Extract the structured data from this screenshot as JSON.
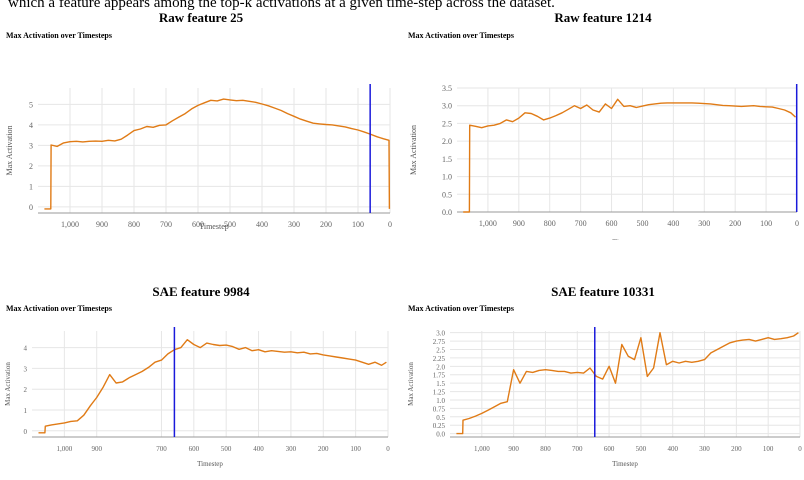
{
  "caption_line": "which a feature appears among the top-k activations at a given time-step across the dataset.",
  "colors": {
    "line": "#e07b16",
    "marker": "#1a1adb",
    "grid": "#e6e6e6",
    "axis": "#999999"
  },
  "chart_data": [
    {
      "type": "line",
      "title": "Raw feature 25",
      "subtitle": "Max Activation over Timesteps",
      "xlabel": "Timestep",
      "ylabel": "Max Activation",
      "x_reversed": true,
      "xlim": [
        1100,
        0
      ],
      "ylim": [
        -0.3,
        5.8
      ],
      "xticks": [
        1000,
        900,
        800,
        700,
        600,
        500,
        400,
        300,
        200,
        100,
        0
      ],
      "xtick_labels": [
        "1,000",
        "900",
        "800",
        "700",
        "600",
        "500",
        "400",
        "300",
        "200",
        "100",
        "0"
      ],
      "yticks": [
        0,
        1,
        2,
        3,
        4,
        5
      ],
      "ytick_labels": [
        "0",
        "1",
        "2",
        "3",
        "4",
        "5"
      ],
      "marker_x": 62,
      "x": [
        1080,
        1060,
        1059,
        1040,
        1020,
        1000,
        980,
        960,
        940,
        920,
        900,
        880,
        860,
        840,
        820,
        800,
        780,
        760,
        740,
        720,
        700,
        680,
        660,
        640,
        620,
        600,
        580,
        560,
        540,
        520,
        500,
        480,
        460,
        440,
        420,
        400,
        380,
        360,
        340,
        320,
        300,
        280,
        260,
        240,
        220,
        200,
        180,
        160,
        140,
        120,
        100,
        80,
        62,
        40,
        20,
        3,
        2
      ],
      "y": [
        -0.1,
        -0.1,
        3.02,
        2.95,
        3.12,
        3.18,
        3.2,
        3.17,
        3.2,
        3.21,
        3.2,
        3.25,
        3.22,
        3.3,
        3.5,
        3.72,
        3.8,
        3.92,
        3.88,
        3.98,
        4.0,
        4.2,
        4.38,
        4.55,
        4.78,
        4.95,
        5.08,
        5.2,
        5.17,
        5.26,
        5.22,
        5.18,
        5.2,
        5.15,
        5.1,
        5.02,
        4.93,
        4.82,
        4.7,
        4.55,
        4.42,
        4.28,
        4.18,
        4.08,
        4.05,
        4.02,
        4.0,
        3.95,
        3.9,
        3.82,
        3.75,
        3.65,
        3.55,
        3.42,
        3.32,
        3.25,
        -0.1
      ]
    },
    {
      "type": "line",
      "title": "Raw feature 1214",
      "subtitle": "Max Activation over Timesteps",
      "xlabel": "Timestep",
      "ylabel": "Max Activation",
      "x_reversed": true,
      "xlim": [
        1100,
        0
      ],
      "ylim": [
        0,
        3.5
      ],
      "xticks": [
        1000,
        900,
        800,
        700,
        600,
        500,
        400,
        300,
        200,
        100,
        0
      ],
      "xtick_labels": [
        "1,000",
        "900",
        "800",
        "700",
        "600",
        "500",
        "400",
        "300",
        "200",
        "100",
        "0"
      ],
      "yticks": [
        0,
        0.5,
        1.0,
        1.5,
        2.0,
        2.5,
        3.0,
        3.5
      ],
      "ytick_labels": [
        "0.0",
        "0.5",
        "1.0",
        "1.5",
        "2.0",
        "2.5",
        "3.0",
        "3.5"
      ],
      "marker_x": 1,
      "x": [
        1080,
        1060,
        1059,
        1040,
        1020,
        1000,
        980,
        960,
        940,
        920,
        900,
        880,
        860,
        840,
        820,
        800,
        780,
        760,
        740,
        720,
        700,
        680,
        660,
        640,
        620,
        600,
        580,
        560,
        540,
        520,
        500,
        480,
        460,
        440,
        420,
        400,
        380,
        360,
        340,
        320,
        300,
        280,
        260,
        240,
        220,
        200,
        180,
        160,
        140,
        120,
        100,
        80,
        60,
        40,
        20,
        5
      ],
      "y": [
        0.0,
        0.0,
        2.45,
        2.42,
        2.38,
        2.43,
        2.45,
        2.5,
        2.6,
        2.55,
        2.65,
        2.8,
        2.78,
        2.7,
        2.6,
        2.65,
        2.72,
        2.8,
        2.9,
        3.0,
        2.92,
        3.02,
        2.88,
        2.82,
        3.05,
        2.92,
        3.18,
        2.98,
        3.0,
        2.95,
        2.99,
        3.03,
        3.05,
        3.07,
        3.08,
        3.08,
        3.08,
        3.08,
        3.08,
        3.07,
        3.06,
        3.05,
        3.03,
        3.01,
        3.0,
        2.99,
        2.98,
        2.99,
        3.0,
        2.98,
        2.97,
        2.96,
        2.92,
        2.88,
        2.8,
        2.68
      ]
    },
    {
      "type": "line",
      "title": "SAE feature 9984",
      "subtitle": "Max Activation over Timesteps",
      "xlabel": "Timestep",
      "ylabel": "Max Activation",
      "x_reversed": true,
      "xlim": [
        1100,
        0
      ],
      "ylim": [
        -0.3,
        4.8
      ],
      "xticks": [
        1000,
        900,
        700,
        600,
        500,
        400,
        300,
        200,
        100,
        0
      ],
      "xtick_labels": [
        "1,000",
        "900",
        "700",
        "600",
        "500",
        "400",
        "300",
        "200",
        "100",
        "0"
      ],
      "yticks": [
        0,
        1,
        2,
        3,
        4
      ],
      "ytick_labels": [
        "0",
        "1",
        "2",
        "3",
        "4"
      ],
      "marker_x": 660,
      "x": [
        1080,
        1060,
        1059,
        1040,
        1020,
        1000,
        980,
        960,
        940,
        920,
        900,
        880,
        860,
        840,
        820,
        800,
        780,
        760,
        740,
        720,
        700,
        680,
        660,
        640,
        620,
        600,
        580,
        560,
        540,
        520,
        500,
        480,
        460,
        440,
        420,
        400,
        380,
        360,
        340,
        320,
        300,
        280,
        260,
        240,
        220,
        200,
        180,
        160,
        140,
        120,
        100,
        80,
        60,
        40,
        20,
        5
      ],
      "y": [
        -0.1,
        -0.1,
        0.22,
        0.28,
        0.33,
        0.38,
        0.45,
        0.48,
        0.75,
        1.2,
        1.6,
        2.1,
        2.7,
        2.3,
        2.35,
        2.55,
        2.7,
        2.85,
        3.05,
        3.3,
        3.4,
        3.7,
        3.9,
        4.0,
        4.38,
        4.15,
        4.0,
        4.22,
        4.15,
        4.1,
        4.12,
        4.05,
        3.92,
        4.0,
        3.85,
        3.9,
        3.8,
        3.85,
        3.82,
        3.78,
        3.8,
        3.75,
        3.78,
        3.7,
        3.72,
        3.65,
        3.6,
        3.55,
        3.5,
        3.45,
        3.4,
        3.3,
        3.2,
        3.3,
        3.15,
        3.3
      ]
    },
    {
      "type": "line",
      "title": "SAE feature 10331",
      "subtitle": "Max Activation over Timesteps",
      "xlabel": "Timestep",
      "ylabel": "Max Activation",
      "x_reversed": true,
      "xlim": [
        1100,
        0
      ],
      "ylim": [
        -0.1,
        3.05
      ],
      "xticks": [
        1000,
        900,
        800,
        700,
        600,
        500,
        400,
        300,
        200,
        100,
        0
      ],
      "xtick_labels": [
        "1,000",
        "900",
        "800",
        "700",
        "600",
        "500",
        "400",
        "300",
        "200",
        "100",
        "0"
      ],
      "yticks": [
        0,
        0.25,
        0.5,
        0.75,
        1.0,
        1.25,
        1.5,
        1.75,
        2.0,
        2.25,
        2.5,
        2.75,
        3.0
      ],
      "ytick_labels": [
        "0.0",
        "0.25",
        "0.5",
        "0.75",
        "1.0",
        "1.25",
        "1.5",
        "1.75",
        "2.0",
        "2.25",
        "2.5",
        "2.75",
        "3.0"
      ],
      "marker_x": 645,
      "x": [
        1080,
        1060,
        1059,
        1040,
        1020,
        1000,
        980,
        960,
        940,
        920,
        900,
        880,
        860,
        840,
        820,
        800,
        780,
        760,
        740,
        720,
        700,
        680,
        660,
        640,
        620,
        600,
        580,
        560,
        540,
        520,
        500,
        480,
        460,
        440,
        420,
        400,
        380,
        360,
        340,
        320,
        300,
        280,
        260,
        240,
        220,
        200,
        180,
        160,
        140,
        120,
        100,
        80,
        60,
        40,
        20,
        5
      ],
      "y": [
        0.0,
        0.0,
        0.4,
        0.45,
        0.52,
        0.6,
        0.7,
        0.8,
        0.9,
        0.95,
        1.9,
        1.5,
        1.85,
        1.82,
        1.88,
        1.9,
        1.88,
        1.85,
        1.85,
        1.8,
        1.82,
        1.8,
        1.95,
        1.7,
        1.62,
        2.0,
        1.5,
        2.65,
        2.3,
        2.2,
        2.85,
        1.7,
        1.95,
        3.0,
        2.05,
        2.15,
        2.1,
        2.15,
        2.12,
        2.15,
        2.2,
        2.4,
        2.5,
        2.6,
        2.7,
        2.75,
        2.78,
        2.8,
        2.75,
        2.8,
        2.85,
        2.8,
        2.82,
        2.85,
        2.9,
        3.0
      ]
    }
  ]
}
